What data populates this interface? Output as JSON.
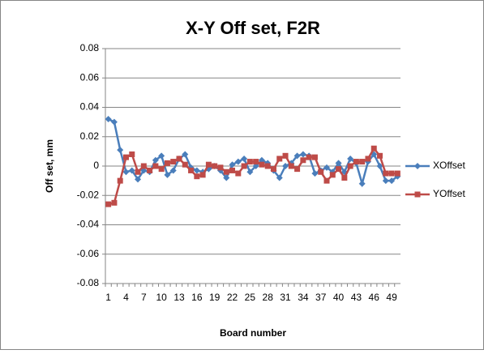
{
  "chart_data": {
    "type": "line",
    "title": "X-Y Off set, F2R",
    "x_label": "Board number",
    "y_label": "Off set, mm",
    "categories": [
      1,
      null,
      null,
      4,
      null,
      null,
      7,
      null,
      null,
      10,
      null,
      null,
      13,
      null,
      null,
      16,
      null,
      null,
      19,
      null,
      null,
      22,
      null,
      null,
      25,
      null,
      null,
      28,
      null,
      null,
      31,
      null,
      null,
      34,
      null,
      null,
      37,
      null,
      null,
      40,
      null,
      null,
      43,
      null,
      null,
      46,
      null,
      null,
      49,
      null
    ],
    "series": [
      {
        "name": "XOffset",
        "color": "#4a7ebb",
        "marker": "diamond",
        "values": [
          0.032,
          0.03,
          0.011,
          -0.004,
          -0.003,
          -0.009,
          -0.003,
          -0.004,
          0.004,
          0.007,
          -0.006,
          -0.003,
          0.005,
          0.008,
          -0.001,
          -0.003,
          -0.004,
          -0.002,
          0.0,
          -0.003,
          -0.008,
          0.001,
          0.003,
          0.005,
          -0.004,
          0.0,
          0.004,
          0.002,
          -0.003,
          -0.008,
          0.0,
          0.002,
          0.007,
          0.008,
          0.007,
          -0.005,
          -0.003,
          -0.001,
          -0.004,
          0.002,
          -0.004,
          0.005,
          0.002,
          -0.012,
          0.003,
          0.008,
          0.0,
          -0.01,
          -0.01,
          -0.007
        ]
      },
      {
        "name": "YOffset",
        "color": "#be4b48",
        "marker": "square",
        "values": [
          -0.026,
          -0.025,
          -0.01,
          0.006,
          0.008,
          -0.004,
          0.0,
          -0.003,
          0.0,
          -0.002,
          0.002,
          0.003,
          0.005,
          0.001,
          -0.003,
          -0.007,
          -0.006,
          0.001,
          0.0,
          -0.001,
          -0.004,
          -0.003,
          -0.005,
          0.0,
          0.003,
          0.003,
          0.001,
          0.0,
          -0.002,
          0.005,
          0.007,
          0.0,
          -0.002,
          0.004,
          0.006,
          0.006,
          -0.004,
          -0.01,
          -0.006,
          -0.002,
          -0.008,
          0.0,
          0.003,
          0.003,
          0.005,
          0.012,
          0.007,
          -0.005,
          -0.005,
          -0.005
        ]
      }
    ],
    "ylim": [
      -0.08,
      0.08
    ],
    "yticks": [
      -0.08,
      -0.06,
      -0.04,
      -0.02,
      0,
      0.02,
      0.04,
      0.06,
      0.08
    ],
    "grid": true,
    "legend": "right"
  }
}
